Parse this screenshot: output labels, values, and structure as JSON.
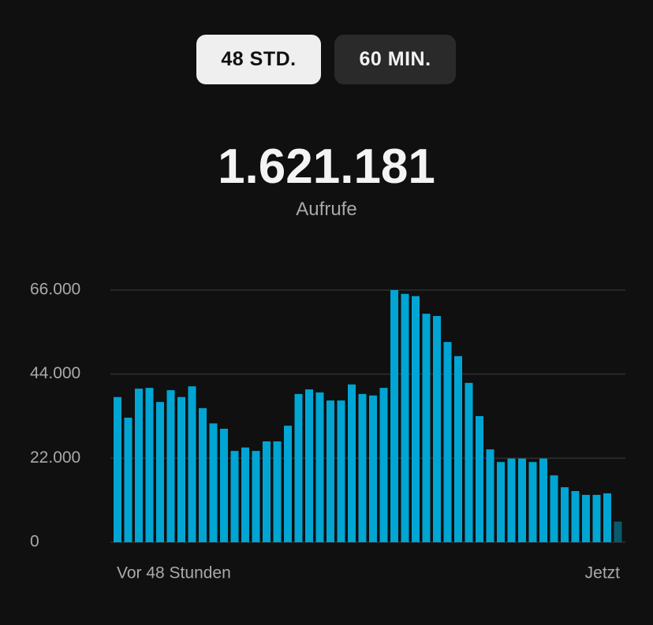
{
  "tabs": [
    "48 STD.",
    "60 MIN."
  ],
  "total": "1.621.181",
  "total_label": "Aufrufe",
  "chart_data": {
    "type": "bar",
    "categories": [
      "Vor 48 Stunden",
      null,
      null,
      null,
      null,
      null,
      null,
      null,
      null,
      null,
      null,
      null,
      null,
      null,
      null,
      null,
      null,
      null,
      null,
      null,
      null,
      null,
      null,
      null,
      null,
      null,
      null,
      null,
      null,
      null,
      null,
      null,
      null,
      null,
      null,
      null,
      null,
      null,
      null,
      null,
      null,
      null,
      null,
      null,
      null,
      null,
      null,
      "Jetzt"
    ],
    "values": [
      38000,
      32600,
      40200,
      40400,
      36700,
      39800,
      38000,
      40800,
      35100,
      31100,
      29700,
      23900,
      24800,
      23900,
      26400,
      26400,
      30500,
      38800,
      40000,
      39200,
      37100,
      37100,
      41300,
      38800,
      38400,
      40400,
      66000,
      65000,
      64400,
      59800,
      59200,
      52400,
      48700,
      41700,
      33000,
      24300,
      21000,
      21900,
      21900,
      21000,
      21900,
      17500,
      14400,
      13400,
      12400,
      12400,
      12800,
      5400
    ],
    "color": "#00a5d3",
    "last_color": "#0a5a6d",
    "ylim": [
      0,
      66000
    ],
    "yticks": [
      0,
      {
        "value": 22000,
        "label": "22.000"
      },
      {
        "value": 44000,
        "label": "44.000"
      },
      {
        "value": 66000,
        "label": "66.000"
      }
    ],
    "grid": true
  }
}
